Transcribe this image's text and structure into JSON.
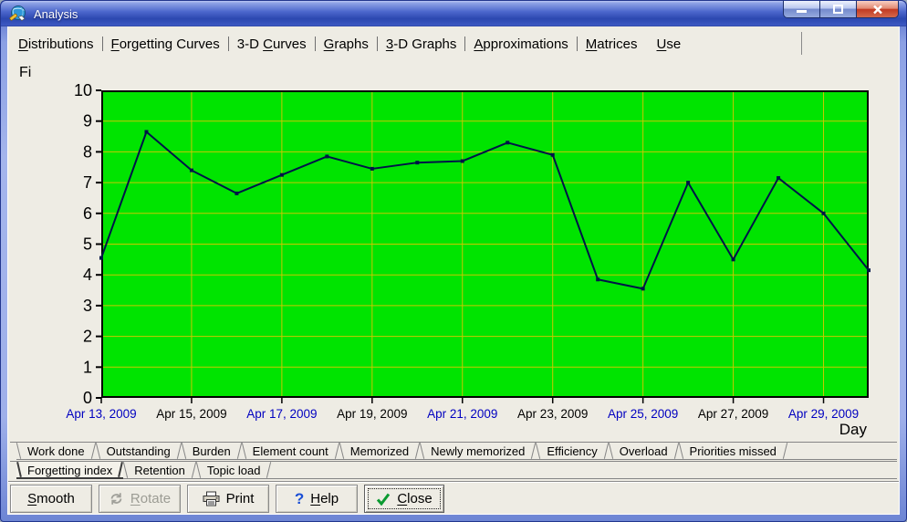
{
  "window": {
    "title": "Analysis"
  },
  "main_tabs": {
    "items": [
      {
        "label": "Distributions",
        "accel": 0
      },
      {
        "label": "Forgetting Curves",
        "accel": 0
      },
      {
        "label": "3-D Curves",
        "accel": 4
      },
      {
        "label": "Graphs",
        "accel": 0
      },
      {
        "label": "3-D Graphs",
        "accel": 0
      },
      {
        "label": "Approximations",
        "accel": 0
      },
      {
        "label": "Matrices",
        "accel": 0
      },
      {
        "label": "Use",
        "accel": 0,
        "active": true
      }
    ]
  },
  "chart_data": {
    "type": "line",
    "title": "",
    "ylabel": "Fi",
    "xlabel": "Day",
    "ylim": [
      0,
      10
    ],
    "y_tick_step": 1,
    "grid": true,
    "x": [
      "Apr 13, 2009",
      "Apr 14, 2009",
      "Apr 15, 2009",
      "Apr 16, 2009",
      "Apr 17, 2009",
      "Apr 18, 2009",
      "Apr 19, 2009",
      "Apr 20, 2009",
      "Apr 21, 2009",
      "Apr 22, 2009",
      "Apr 23, 2009",
      "Apr 24, 2009",
      "Apr 25, 2009",
      "Apr 26, 2009",
      "Apr 27, 2009",
      "Apr 28, 2009",
      "Apr 29, 2009",
      "Apr 30, 2009"
    ],
    "values": [
      4.55,
      8.65,
      7.4,
      6.65,
      7.25,
      7.85,
      7.45,
      7.65,
      7.7,
      8.3,
      7.9,
      3.85,
      3.55,
      7.0,
      4.5,
      7.15,
      6.0,
      4.15
    ],
    "x_tick_every": 2,
    "x_tick_colors_alternate": [
      "#0000c0",
      "#000000"
    ]
  },
  "bottom_tabs": {
    "row1": [
      {
        "label": "Work done"
      },
      {
        "label": "Outstanding"
      },
      {
        "label": "Burden"
      },
      {
        "label": "Element count"
      },
      {
        "label": "Memorized"
      },
      {
        "label": "Newly memorized"
      },
      {
        "label": "Efficiency"
      },
      {
        "label": "Overload"
      },
      {
        "label": "Priorities missed"
      }
    ],
    "row2": [
      {
        "label": "Forgetting index",
        "selected": true
      },
      {
        "label": "Retention"
      },
      {
        "label": "Topic load"
      }
    ]
  },
  "buttons": [
    {
      "label": "Smooth",
      "accel": 0
    },
    {
      "label": "Rotate",
      "accel": 0,
      "icon": "rotate-icon",
      "disabled": true
    },
    {
      "label": "Print",
      "icon": "print-icon"
    },
    {
      "label": "Help",
      "accel": 0,
      "icon": "help-icon"
    },
    {
      "label": "Close",
      "accel": 0,
      "icon": "check-icon",
      "default": true
    }
  ],
  "colors": {
    "plot_bg": "#00e400",
    "grid": "#c8c800",
    "line": "#001448",
    "tick_blue": "#0000c0",
    "tick_black": "#000000"
  }
}
